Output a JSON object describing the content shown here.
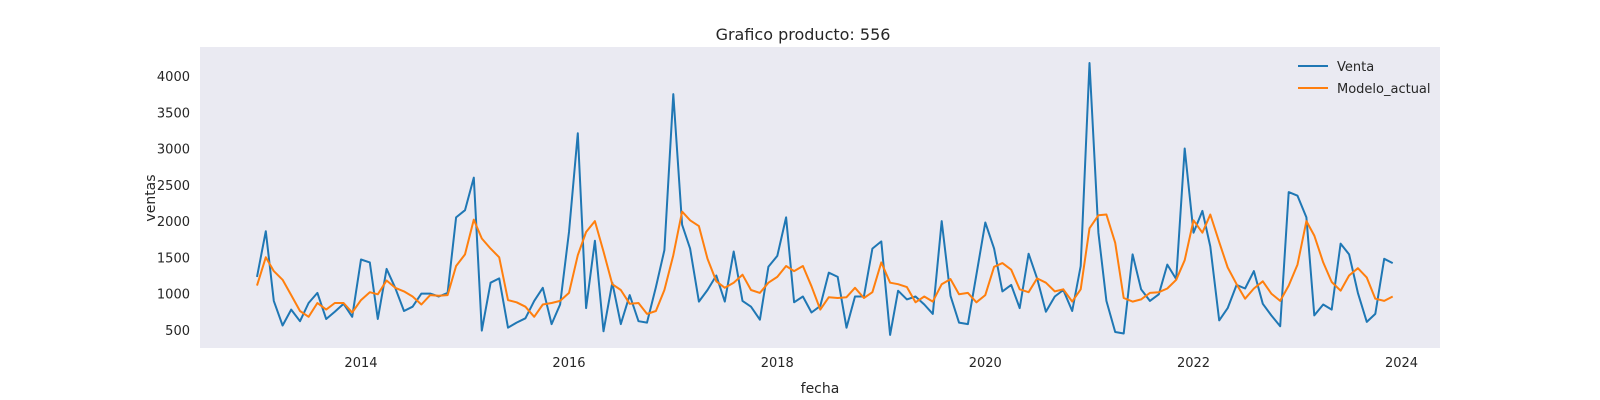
{
  "chart_data": {
    "type": "line",
    "title": "Grafico producto: 556",
    "xlabel": "fecha",
    "ylabel": "ventas",
    "x_axis": "date",
    "xlim": [
      "2012-06-15",
      "2024-05-15"
    ],
    "ylim": [
      250,
      4400
    ],
    "xticks": [
      "2014",
      "2016",
      "2018",
      "2020",
      "2022",
      "2024"
    ],
    "yticks": [
      500,
      1000,
      1500,
      2000,
      2500,
      3000,
      3500,
      4000
    ],
    "grid": false,
    "background": "#eaeaf2",
    "legend_position": "top-right",
    "x": [
      "2013-01",
      "2013-02",
      "2013-03",
      "2013-04",
      "2013-05",
      "2013-06",
      "2013-07",
      "2013-08",
      "2013-09",
      "2013-10",
      "2013-11",
      "2013-12",
      "2014-01",
      "2014-02",
      "2014-03",
      "2014-04",
      "2014-05",
      "2014-06",
      "2014-07",
      "2014-08",
      "2014-09",
      "2014-10",
      "2014-11",
      "2014-12",
      "2015-01",
      "2015-02",
      "2015-03",
      "2015-04",
      "2015-05",
      "2015-06",
      "2015-07",
      "2015-08",
      "2015-09",
      "2015-10",
      "2015-11",
      "2015-12",
      "2016-01",
      "2016-02",
      "2016-03",
      "2016-04",
      "2016-05",
      "2016-06",
      "2016-07",
      "2016-08",
      "2016-09",
      "2016-10",
      "2016-11",
      "2016-12",
      "2017-01",
      "2017-02",
      "2017-03",
      "2017-04",
      "2017-05",
      "2017-06",
      "2017-07",
      "2017-08",
      "2017-09",
      "2017-10",
      "2017-11",
      "2017-12",
      "2018-01",
      "2018-02",
      "2018-03",
      "2018-04",
      "2018-05",
      "2018-06",
      "2018-07",
      "2018-08",
      "2018-09",
      "2018-10",
      "2018-11",
      "2018-12",
      "2019-01",
      "2019-02",
      "2019-03",
      "2019-04",
      "2019-05",
      "2019-06",
      "2019-07",
      "2019-08",
      "2019-09",
      "2019-10",
      "2019-11",
      "2019-12",
      "2020-01",
      "2020-02",
      "2020-03",
      "2020-04",
      "2020-05",
      "2020-06",
      "2020-07",
      "2020-08",
      "2020-09",
      "2020-10",
      "2020-11",
      "2020-12",
      "2021-01",
      "2021-02",
      "2021-03",
      "2021-04",
      "2021-05",
      "2021-06",
      "2021-07",
      "2021-08",
      "2021-09",
      "2021-10",
      "2021-11",
      "2021-12",
      "2022-01",
      "2022-02",
      "2022-03",
      "2022-04",
      "2022-05",
      "2022-06",
      "2022-07",
      "2022-08",
      "2022-09",
      "2022-10",
      "2022-11",
      "2022-12",
      "2023-01",
      "2023-02",
      "2023-03",
      "2023-04",
      "2023-05",
      "2023-06",
      "2023-07",
      "2023-08",
      "2023-09",
      "2023-10",
      "2023-11",
      "2023-12"
    ],
    "series": [
      {
        "name": "Venta",
        "color": "#1f77b4",
        "values": [
          1230,
          1860,
          900,
          560,
          780,
          620,
          870,
          1010,
          650,
          750,
          860,
          680,
          1470,
          1430,
          650,
          1340,
          1080,
          760,
          820,
          1000,
          1000,
          960,
          1010,
          2050,
          2150,
          2600,
          490,
          1150,
          1210,
          530,
          600,
          660,
          900,
          1080,
          580,
          850,
          1850,
          3210,
          800,
          1730,
          480,
          1150,
          580,
          980,
          620,
          600,
          1090,
          1600,
          3750,
          1950,
          1620,
          890,
          1050,
          1250,
          890,
          1580,
          900,
          820,
          640,
          1370,
          1520,
          2050,
          880,
          960,
          740,
          830,
          1290,
          1230,
          530,
          960,
          960,
          1620,
          1720,
          430,
          1040,
          920,
          960,
          850,
          720,
          2000,
          970,
          600,
          580,
          1260,
          1980,
          1620,
          1030,
          1120,
          800,
          1550,
          1210,
          750,
          960,
          1050,
          760,
          1380,
          4180,
          1840,
          900,
          470,
          450,
          1540,
          1060,
          900,
          990,
          1400,
          1200,
          3000,
          1840,
          2140,
          1650,
          630,
          800,
          1120,
          1070,
          1310,
          860,
          700,
          550,
          2400,
          2350,
          2050,
          700,
          850,
          780,
          1690,
          1540,
          1010,
          610,
          720,
          1480,
          1420
        ]
      },
      {
        "name": "Modelo_actual",
        "color": "#ff7f0e",
        "values": [
          1110,
          1500,
          1310,
          1190,
          980,
          760,
          680,
          870,
          780,
          870,
          870,
          740,
          910,
          1020,
          990,
          1180,
          1080,
          1030,
          960,
          850,
          980,
          970,
          980,
          1380,
          1540,
          2020,
          1760,
          1620,
          1500,
          910,
          880,
          820,
          680,
          850,
          870,
          900,
          1010,
          1530,
          1850,
          2000,
          1580,
          1130,
          1050,
          860,
          870,
          720,
          760,
          1050,
          1530,
          2130,
          2010,
          1930,
          1480,
          1170,
          1080,
          1150,
          1260,
          1050,
          1010,
          1150,
          1230,
          1380,
          1310,
          1380,
          1100,
          780,
          950,
          940,
          950,
          1080,
          940,
          1020,
          1430,
          1150,
          1130,
          1090,
          880,
          960,
          890,
          1130,
          1200,
          990,
          1010,
          880,
          980,
          1370,
          1420,
          1330,
          1060,
          1020,
          1210,
          1150,
          1030,
          1060,
          890,
          1060,
          1900,
          2080,
          2090,
          1700,
          940,
          890,
          920,
          1010,
          1020,
          1070,
          1190,
          1460,
          2010,
          1840,
          2090,
          1710,
          1360,
          1130,
          930,
          1070,
          1170,
          1000,
          900,
          1110,
          1400,
          2000,
          1800,
          1430,
          1160,
          1040,
          1250,
          1350,
          1220,
          930,
          900,
          960
        ]
      }
    ]
  }
}
